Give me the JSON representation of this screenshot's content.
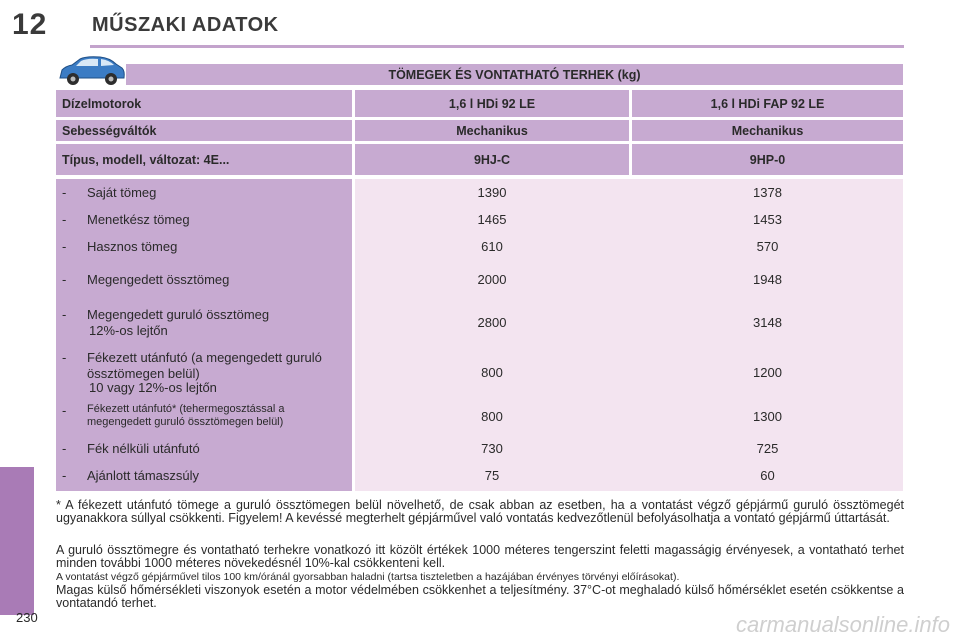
{
  "header": {
    "chapter_number": "12",
    "chapter_title": "MŰSZAKI ADATOK"
  },
  "section_title": "TÖMEGEK ÉS VONTATHATÓ TERHEK (kg)",
  "icons": {
    "car": "car-icon"
  },
  "colors": {
    "header_cell": "#c7aad1",
    "value_cell": "#f3e4f0",
    "side_tab": "#a97bb6"
  },
  "table": {
    "header_rows": [
      {
        "label": "Dízelmotorok",
        "col1": "1,6 l HDi 92 LE",
        "col2": "1,6 l HDi FAP 92 LE"
      },
      {
        "label": "Sebességváltók",
        "col1": "Mechanikus",
        "col2": "Mechanikus"
      },
      {
        "label": "Típus, modell, változat: 4E...",
        "col1": "9HJ-C",
        "col2": "9HP-0"
      }
    ],
    "rows": [
      {
        "dash": "-",
        "label": "Saját tömeg",
        "sub": "",
        "v1": "1390",
        "v2": "1378"
      },
      {
        "dash": "-",
        "label": "Menetkész tömeg",
        "sub": "",
        "v1": "1465",
        "v2": "1453"
      },
      {
        "dash": "-",
        "label": "Hasznos tömeg",
        "sub": "",
        "v1": "610",
        "v2": "570"
      },
      {
        "dash": "-",
        "label": "Megengedett össztömeg",
        "sub": "",
        "v1": "2000",
        "v2": "1948"
      },
      {
        "dash": "-",
        "label": "Megengedett guruló össztömeg",
        "sub": "12%-os lejtőn",
        "v1": "2800",
        "v2": "3148"
      },
      {
        "dash": "-",
        "label": "Fékezett utánfutó (a megengedett guruló össztömegen belül)",
        "sub": "10 vagy 12%-os lejtőn",
        "v1": "800",
        "v2": "1200"
      },
      {
        "dash": "-",
        "label": "Fékezett utánfutó* (tehermegosztással a megengedett guruló össztömegen belül)",
        "sub": "",
        "v1": "800",
        "v2": "1300"
      },
      {
        "dash": "-",
        "label": "Fék nélküli utánfutó",
        "sub": "",
        "v1": "730",
        "v2": "725"
      },
      {
        "dash": "-",
        "label": "Ajánlott támaszsúly",
        "sub": "",
        "v1": "75",
        "v2": "60"
      }
    ]
  },
  "footnotes": {
    "asterisk": "* A fékezett utánfutó tömege a guruló össztömegen belül növelhető, de csak abban az esetben, ha a vontatást végző gépjármű guruló össztömegét ugyanakkora súllyal csökkenti. Figyelem! A kevéssé megterhelt gépjárművel való vontatás kedvezőtlenül befolyásolhatja a vontató gépjármű úttartását.",
    "altitude": "A guruló össztömegre és vontatható terhekre vonatkozó itt közölt értékek 1000 méteres tengerszint feletti magasságig érvényesek, a vontatható terhet minden további 1000 méteres növekedésnél 10%-kal csökkenteni kell.",
    "speed": "A vontatást végző gépjárművel tilos 100 km/óránál gyorsabban haladni (tartsa tiszteletben a hazájában érvényes törvényi előírásokat).",
    "temperature": "Magas külső hőmérsékleti viszonyok esetén a motor védelmében csökkenhet a teljesítmény. 37°C-ot meghaladó külső hőmérséklet esetén csökkentse a vontatandó terhet."
  },
  "page_number": "230",
  "watermark": "carmanualsonline.info"
}
